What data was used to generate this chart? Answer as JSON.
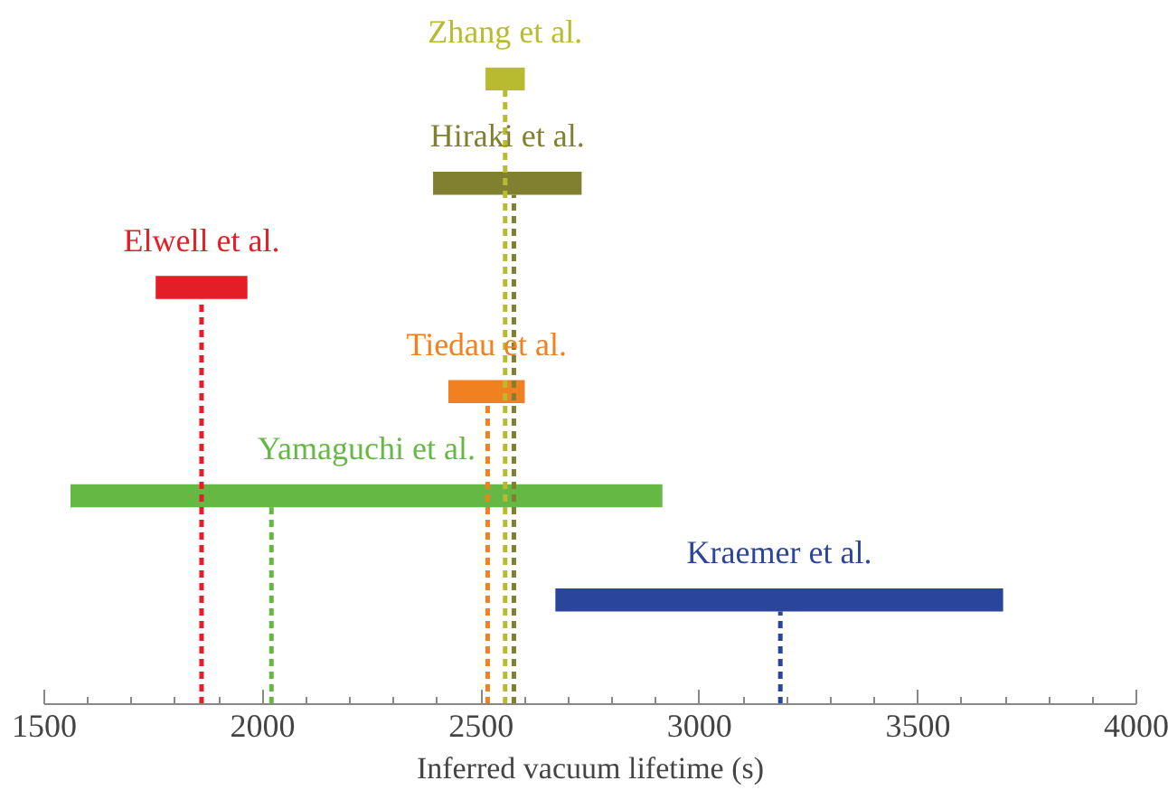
{
  "chart_data": {
    "type": "bar",
    "orientation": "horizontal",
    "xlabel": "Inferred vacuum lifetime (s)",
    "categories": [
      "Zhang et al.",
      "Hiraki et al.",
      "Elwell et al.",
      "Tiedau et al.",
      "Yamaguchi et al.",
      "Kraemer et al."
    ],
    "base": [
      2510,
      2390,
      1755,
      2425,
      1560,
      2670
    ],
    "values": [
      90,
      340,
      210,
      175,
      1355,
      1025
    ],
    "colors": [
      "#b8bb30",
      "#808030",
      "#e41e26",
      "#f08020",
      "#66b845",
      "#2a469c"
    ],
    "ref_lines": [
      {
        "axis": "x",
        "value": 2555,
        "color": "#b8bb30",
        "line_style": "dashed"
      },
      {
        "axis": "x",
        "value": 2575,
        "color": "#808030",
        "line_style": "dashed"
      },
      {
        "axis": "x",
        "value": 1860,
        "color": "#e41e26",
        "line_style": "dashed"
      },
      {
        "axis": "x",
        "value": 2515,
        "color": "#f08020",
        "line_style": "dashed"
      },
      {
        "axis": "x",
        "value": 2020,
        "color": "#66b845",
        "line_style": "dashed"
      },
      {
        "axis": "x",
        "value": 3185,
        "color": "#2a469c",
        "line_style": "dashed"
      }
    ],
    "xlim": [
      1500,
      4000
    ],
    "xticks": [
      1500,
      2000,
      2500,
      3000,
      3500,
      4000
    ],
    "grid": false
  }
}
